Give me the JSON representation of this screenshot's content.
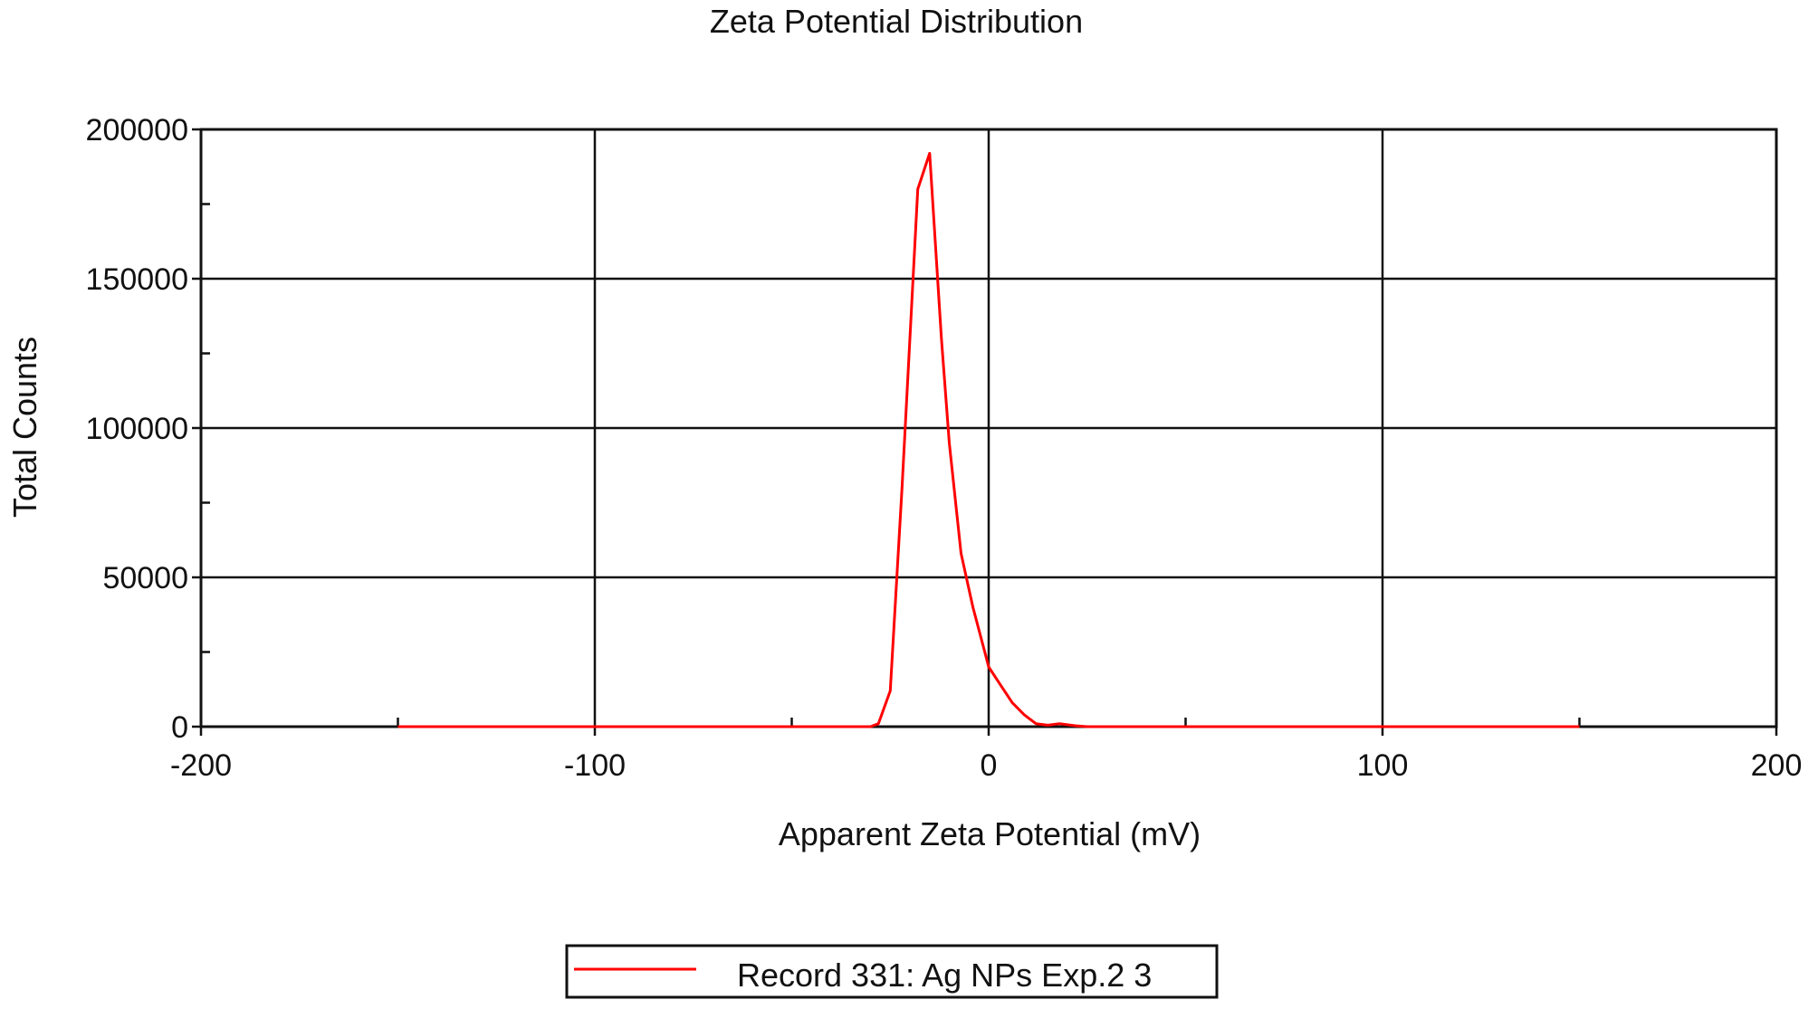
{
  "chart_data": {
    "type": "line",
    "title": "Zeta Potential Distribution",
    "xlabel": "Apparent Zeta Potential (mV)",
    "ylabel": "Total Counts",
    "xlim": [
      -200,
      200
    ],
    "ylim": [
      0,
      200000
    ],
    "x_ticks": [
      -200,
      -100,
      0,
      100,
      200
    ],
    "x_tick_labels": [
      "-200",
      "-100",
      "0",
      "100",
      "200"
    ],
    "y_ticks": [
      0,
      50000,
      100000,
      150000,
      200000
    ],
    "y_tick_labels": [
      "0",
      "50000",
      "100000",
      "150000",
      "200000"
    ],
    "grid": true,
    "legend_position": "bottom-center",
    "series": [
      {
        "name": "Record 331: Ag NPs Exp.2 3",
        "color": "#ff0000",
        "x": [
          -150,
          -140,
          -120,
          -100,
          -80,
          -60,
          -40,
          -30,
          -28,
          -25,
          -22,
          -18,
          -15,
          -12,
          -10,
          -7,
          -4,
          -1,
          0,
          3,
          6,
          9,
          12,
          15,
          18,
          22,
          25,
          40,
          60,
          80,
          100,
          120,
          140,
          150
        ],
        "y": [
          0,
          0,
          0,
          0,
          0,
          0,
          0,
          0,
          1000,
          12000,
          80000,
          180000,
          192000,
          130000,
          95000,
          58000,
          40000,
          25000,
          20000,
          14000,
          8000,
          4000,
          1000,
          500,
          1000,
          300,
          0,
          0,
          0,
          0,
          0,
          0,
          0,
          0
        ]
      }
    ]
  }
}
